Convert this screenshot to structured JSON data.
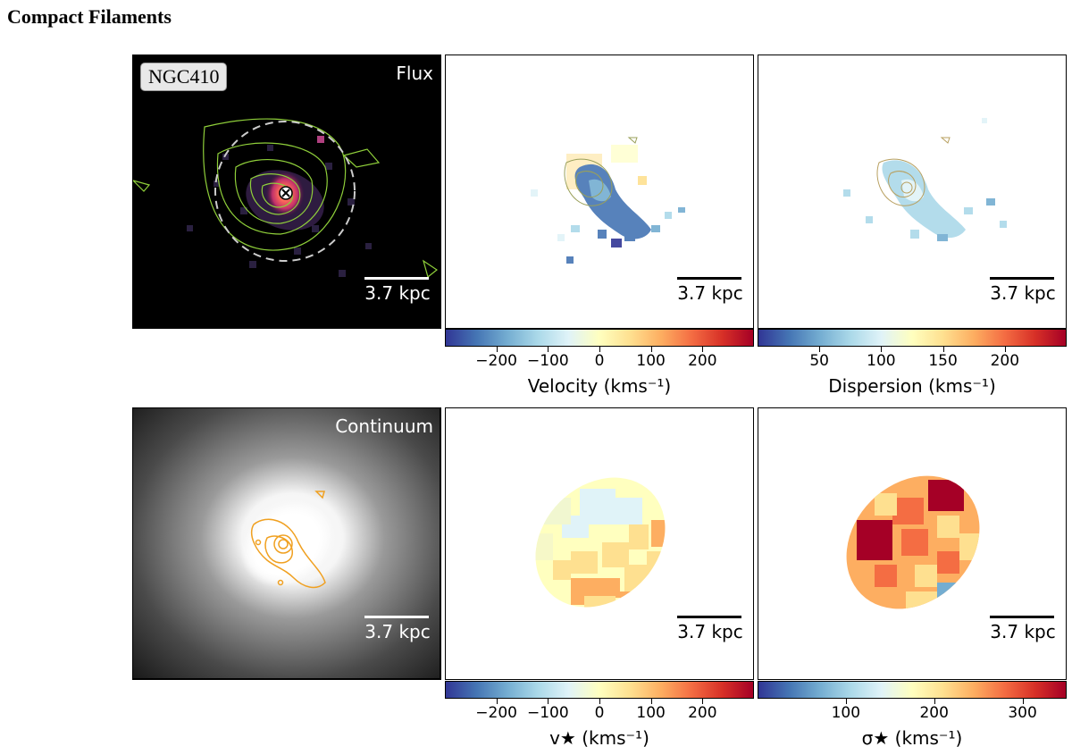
{
  "figure": {
    "title": "Compact Filaments",
    "galaxy": "NGC410"
  },
  "panels": {
    "flux": {
      "tag": "Flux"
    },
    "continuum": {
      "tag": "Continuum"
    }
  },
  "scalebar": {
    "label": "3.7 kpc"
  },
  "colorbars": {
    "gas_velocity": {
      "label": "Velocity (kms⁻¹)",
      "min": -300,
      "max": 300,
      "ticks": [
        {
          "v": -200,
          "t": "−200"
        },
        {
          "v": -100,
          "t": "−100"
        },
        {
          "v": 0,
          "t": "0"
        },
        {
          "v": 100,
          "t": "100"
        },
        {
          "v": 200,
          "t": "200"
        }
      ]
    },
    "gas_dispersion": {
      "label": "Dispersion (kms⁻¹)",
      "min": 0,
      "max": 250,
      "ticks": [
        {
          "v": 50,
          "t": "50"
        },
        {
          "v": 100,
          "t": "100"
        },
        {
          "v": 150,
          "t": "150"
        },
        {
          "v": 200,
          "t": "200"
        }
      ]
    },
    "stellar_velocity": {
      "label": "v★ (kms⁻¹)",
      "min": -300,
      "max": 300,
      "ticks": [
        {
          "v": -200,
          "t": "−200"
        },
        {
          "v": -100,
          "t": "−100"
        },
        {
          "v": 0,
          "t": "0"
        },
        {
          "v": 100,
          "t": "100"
        },
        {
          "v": 200,
          "t": "200"
        }
      ]
    },
    "stellar_dispersion": {
      "label": "σ★ (kms⁻¹)",
      "min": 0,
      "max": 350,
      "ticks": [
        {
          "v": 100,
          "t": "100"
        },
        {
          "v": 200,
          "t": "200"
        },
        {
          "v": 300,
          "t": "300"
        }
      ]
    }
  },
  "colormap": [
    "#313695",
    "#4575b4",
    "#74add1",
    "#abd9e9",
    "#e0f3f8",
    "#ffffbf",
    "#fee090",
    "#fdae61",
    "#f46d43",
    "#d73027",
    "#a50026"
  ],
  "colors": {
    "contour_green": "#8fcf3a",
    "contour_orange": "#f0a020",
    "panel_black": "#000000"
  }
}
